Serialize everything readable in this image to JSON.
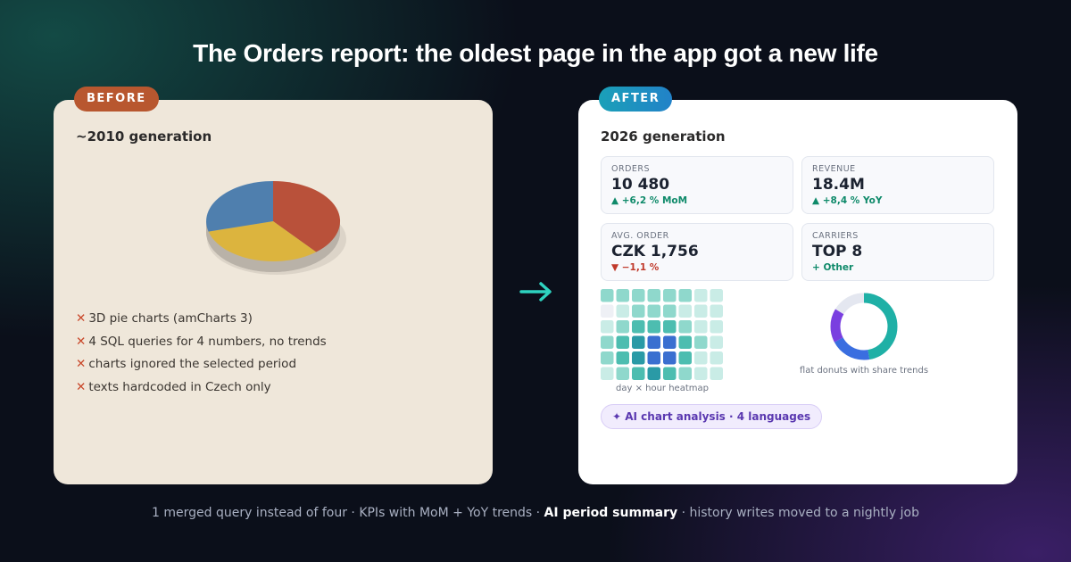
{
  "title": "The Orders report: the oldest page in the app got a new life",
  "before": {
    "badge": "BEFORE",
    "heading": "~2010 generation",
    "issues": [
      "3D pie charts (amCharts 3)",
      "4 SQL queries for 4 numbers, no trends",
      "charts ignored the selected period",
      "texts hardcoded in Czech only"
    ]
  },
  "after": {
    "badge": "AFTER",
    "heading": "2026 generation",
    "kpis": [
      {
        "label": "ORDERS",
        "value": "10 480",
        "trend": "▲ +6,2 % MoM",
        "color": "#0f8a6a"
      },
      {
        "label": "REVENUE",
        "value": "18.4M",
        "trend": "▲ +8,4 % YoY",
        "color": "#0f8a6a"
      },
      {
        "label": "AVG. ORDER",
        "value": "CZK 1,756",
        "trend": "▼ −1,1 %",
        "color": "#c0392b"
      },
      {
        "label": "CARRIERS",
        "value": "TOP 8",
        "trend": "+ Other",
        "color": "#0f8a6a"
      }
    ],
    "heatmap_caption": "day × hour heatmap",
    "donut_caption": "flat donuts with share trends",
    "ai_pill": "✦ AI chart analysis · 4 languages"
  },
  "footer": [
    "1 merged query instead of four · KPIs with MoM + YoY trends · ",
    "AI period summary",
    " · history writes moved to a nightly job"
  ]
}
